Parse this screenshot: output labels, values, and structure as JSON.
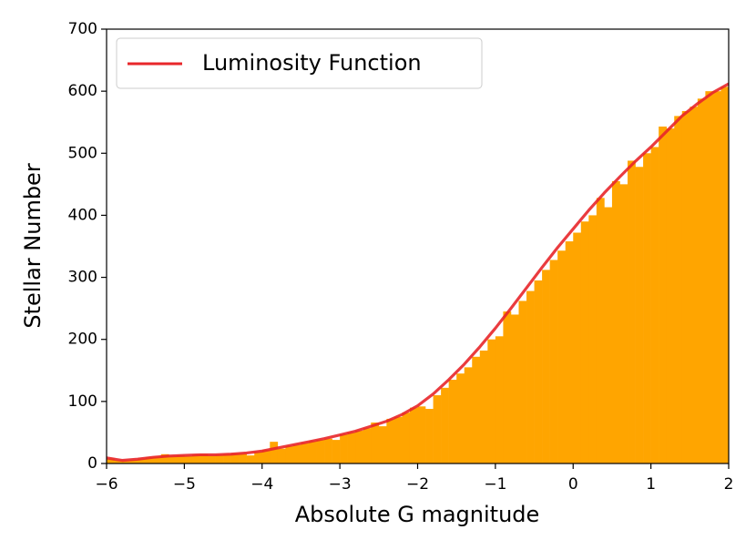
{
  "chart_data": {
    "type": "histogram",
    "xlabel": "Absolute G magnitude",
    "ylabel": "Stellar Number",
    "xlim": [
      -6,
      2
    ],
    "ylim": [
      0,
      700
    ],
    "xticks": [
      {
        "value": -6,
        "label": "−6"
      },
      {
        "value": -5,
        "label": "−5"
      },
      {
        "value": -4,
        "label": "−4"
      },
      {
        "value": -3,
        "label": "−3"
      },
      {
        "value": -2,
        "label": "−2"
      },
      {
        "value": -1,
        "label": "−1"
      },
      0,
      1,
      2
    ],
    "yticks": [
      0,
      100,
      200,
      300,
      400,
      500,
      600,
      700
    ],
    "legend": "upper left",
    "series": [
      {
        "type": "histogram",
        "color": "#ffa500",
        "bins": [
          -6.0,
          -5.9,
          -5.8,
          -5.7,
          -5.6,
          -5.5,
          -5.4,
          -5.3,
          -5.2,
          -5.1,
          -5.0,
          -4.9,
          -4.8,
          -4.7,
          -4.6,
          -4.5,
          -4.4,
          -4.3,
          -4.2,
          -4.1,
          -4.0,
          -3.9,
          -3.8,
          -3.7,
          -3.6,
          -3.5,
          -3.4,
          -3.3,
          -3.2,
          -3.1,
          -3.0,
          -2.9,
          -2.8,
          -2.7,
          -2.6,
          -2.5,
          -2.4,
          -2.3,
          -2.2,
          -2.1,
          -2.0,
          -1.9,
          -1.8,
          -1.7,
          -1.6,
          -1.5,
          -1.4,
          -1.3,
          -1.2,
          -1.1,
          -1.0,
          -0.9,
          -0.8,
          -0.7,
          -0.6,
          -0.5,
          -0.4,
          -0.3,
          -0.2,
          -0.1,
          0.0,
          0.1,
          0.2,
          0.3,
          0.4,
          0.5,
          0.6,
          0.7,
          0.8,
          0.9,
          1.0,
          1.1,
          1.2,
          1.3,
          1.4,
          1.5,
          1.6,
          1.7,
          1.8,
          1.9,
          2.0
        ],
        "counts": [
          8,
          5,
          5,
          6,
          8,
          10,
          11,
          15,
          12,
          13,
          12,
          14,
          15,
          13,
          14,
          15,
          16,
          16,
          13,
          19,
          22,
          35,
          24,
          28,
          30,
          33,
          36,
          38,
          40,
          38,
          47,
          50,
          53,
          57,
          66,
          60,
          72,
          75,
          82,
          90,
          92,
          88,
          110,
          122,
          135,
          145,
          155,
          172,
          182,
          200,
          205,
          245,
          240,
          262,
          278,
          295,
          312,
          328,
          343,
          358,
          372,
          390,
          400,
          428,
          413,
          455,
          450,
          488,
          478,
          500,
          510,
          543,
          540,
          560,
          568,
          575,
          588,
          600,
          600,
          607
        ]
      },
      {
        "type": "line",
        "name": "Luminosity Function",
        "color": "#e8262a",
        "x": [
          -6.0,
          -5.8,
          -5.6,
          -5.4,
          -5.2,
          -5.0,
          -4.8,
          -4.6,
          -4.4,
          -4.2,
          -4.0,
          -3.8,
          -3.6,
          -3.4,
          -3.2,
          -3.0,
          -2.8,
          -2.6,
          -2.4,
          -2.2,
          -2.0,
          -1.8,
          -1.6,
          -1.4,
          -1.2,
          -1.0,
          -0.8,
          -0.6,
          -0.4,
          -0.2,
          0.0,
          0.2,
          0.4,
          0.6,
          0.8,
          1.0,
          1.2,
          1.4,
          1.6,
          1.8,
          2.0
        ],
        "values": [
          9,
          5,
          7,
          10,
          12,
          13,
          14,
          14,
          15,
          17,
          20,
          25,
          30,
          35,
          40,
          46,
          52,
          60,
          68,
          79,
          93,
          112,
          135,
          160,
          188,
          218,
          250,
          283,
          316,
          348,
          378,
          408,
          436,
          462,
          487,
          510,
          535,
          560,
          580,
          598,
          612
        ]
      }
    ]
  }
}
